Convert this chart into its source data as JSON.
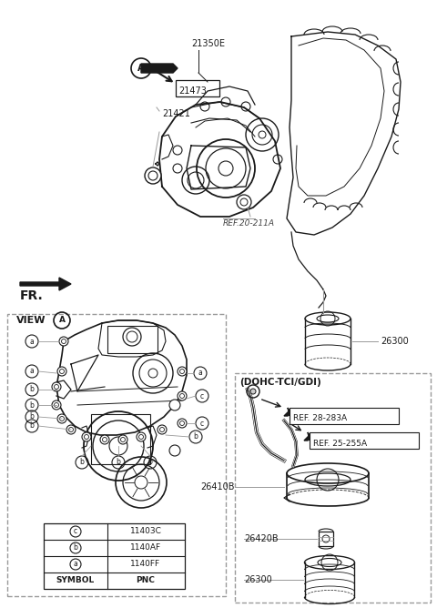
{
  "background_color": "#ffffff",
  "line_color": "#1a1a1a",
  "gray_color": "#666666",
  "dashed_color": "#999999",
  "figsize": [
    4.8,
    6.68
  ],
  "dpi": 100,
  "xlim": [
    0,
    480
  ],
  "ylim": [
    0,
    668
  ]
}
